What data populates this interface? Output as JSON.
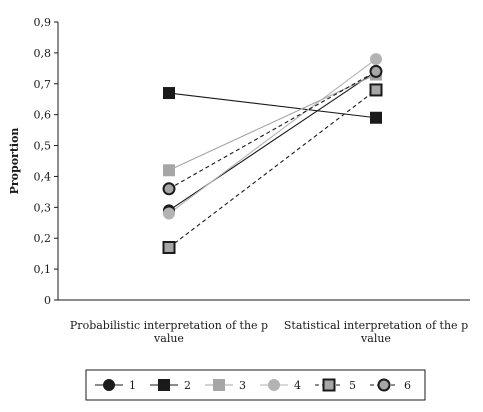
{
  "chart_data": {
    "type": "line",
    "title": "",
    "xlabel": "",
    "ylabel": "Proportion",
    "ylim": [
      0,
      0.9
    ],
    "y_ticks": [
      "0",
      "0,1",
      "0,2",
      "0,3",
      "0,4",
      "0,5",
      "0,6",
      "0,7",
      "0,8",
      "0,9"
    ],
    "categories": [
      [
        "Probabilistic interpretation of the p",
        "value"
      ],
      [
        "Statistical interpretation of the p",
        "value"
      ]
    ],
    "grid": false,
    "legend_position": "bottom",
    "series": [
      {
        "name": "1",
        "values": [
          0.29,
          0.74
        ],
        "color": "#1a1a1a",
        "marker": "circle",
        "dash": "solid"
      },
      {
        "name": "2",
        "values": [
          0.67,
          0.59
        ],
        "color": "#1a1a1a",
        "marker": "square",
        "dash": "solid"
      },
      {
        "name": "3",
        "values": [
          0.42,
          0.73
        ],
        "color": "#a6a6a6",
        "marker": "square",
        "dash": "solid"
      },
      {
        "name": "4",
        "values": [
          0.28,
          0.78
        ],
        "color": "#b3b3b3",
        "marker": "circle",
        "dash": "solid"
      },
      {
        "name": "5",
        "values": [
          0.17,
          0.68
        ],
        "color": "#1a1a1a",
        "marker": "square-gray",
        "dash": "dashed"
      },
      {
        "name": "6",
        "values": [
          0.36,
          0.74
        ],
        "color": "#1a1a1a",
        "marker": "circle-gray",
        "dash": "dashed"
      }
    ]
  }
}
